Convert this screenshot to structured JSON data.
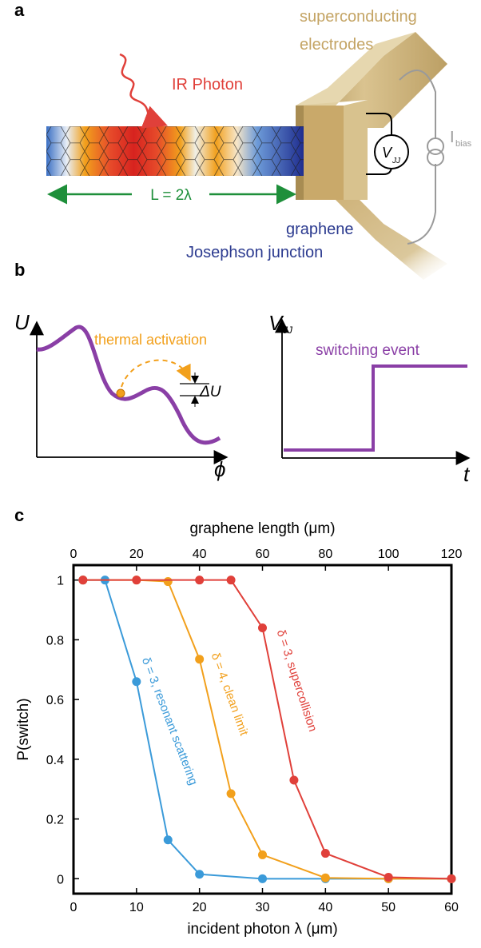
{
  "figure": {
    "panel_a": {
      "letter": "a",
      "photon_label": "IR Photon",
      "electrodes_label_line1": "superconducting",
      "electrodes_label_line2": "electrodes",
      "length_label": "L = 2λ",
      "junction_label_line1": "graphene",
      "junction_label_line2": "Josephson junction",
      "voltmeter_label": "V",
      "voltmeter_sub": "JJ",
      "bias_label": "I",
      "bias_sub": "bias"
    },
    "panel_b": {
      "letter": "b",
      "left_ylabel": "U",
      "left_xlabel": "ϕ",
      "activation_label": "thermal activation",
      "barrier_label": "ΔU",
      "right_ylabel": "V",
      "right_ylabel_sub": "JJ",
      "right_xlabel": "t",
      "switching_label": "switching event"
    },
    "panel_c": {
      "letter": "c"
    }
  },
  "colors": {
    "red": "#e0403a",
    "orange": "#f2a01c",
    "blue": "#3a9ad9",
    "purple": "#8a3fa6",
    "green": "#1e8f3a",
    "gold": "#c9a96a",
    "navy": "#2b3a8f"
  },
  "chart_data": {
    "type": "line",
    "xlabel": "incident photon λ (μm)",
    "x2label": "graphene length (μm)",
    "ylabel": "P(switch)",
    "xlim": [
      0,
      60
    ],
    "x2lim": [
      0,
      120
    ],
    "ylim": [
      -0.05,
      1.05
    ],
    "xticks": [
      0,
      10,
      20,
      30,
      40,
      50,
      60
    ],
    "x2ticks": [
      0,
      20,
      40,
      60,
      80,
      100,
      120
    ],
    "yticks": [
      0,
      0.2,
      0.4,
      0.6,
      0.8,
      1
    ],
    "ytick_labels": [
      "0",
      "0.2",
      "0.4",
      "0.6",
      "0.8",
      "1"
    ],
    "series": [
      {
        "name": "δ = 3, resonant scattering",
        "color": "#3a9ad9",
        "x": [
          1.5,
          5,
          10,
          15,
          20,
          30,
          40,
          50,
          60
        ],
        "y": [
          1.0,
          1.0,
          0.66,
          0.13,
          0.015,
          0.0,
          0.0,
          0.0,
          0.0
        ]
      },
      {
        "name": "δ = 4, clean limit",
        "color": "#f2a01c",
        "x": [
          1.5,
          10,
          15,
          20,
          25,
          30,
          40,
          50,
          60
        ],
        "y": [
          1.0,
          1.0,
          0.995,
          0.735,
          0.285,
          0.08,
          0.003,
          0.0,
          0.0
        ]
      },
      {
        "name": "δ = 3, supercollision",
        "color": "#e0403a",
        "x": [
          1.5,
          10,
          20,
          25,
          30,
          35,
          40,
          50,
          60
        ],
        "y": [
          1.0,
          1.0,
          1.0,
          1.0,
          0.84,
          0.33,
          0.085,
          0.005,
          0.0
        ]
      }
    ]
  }
}
